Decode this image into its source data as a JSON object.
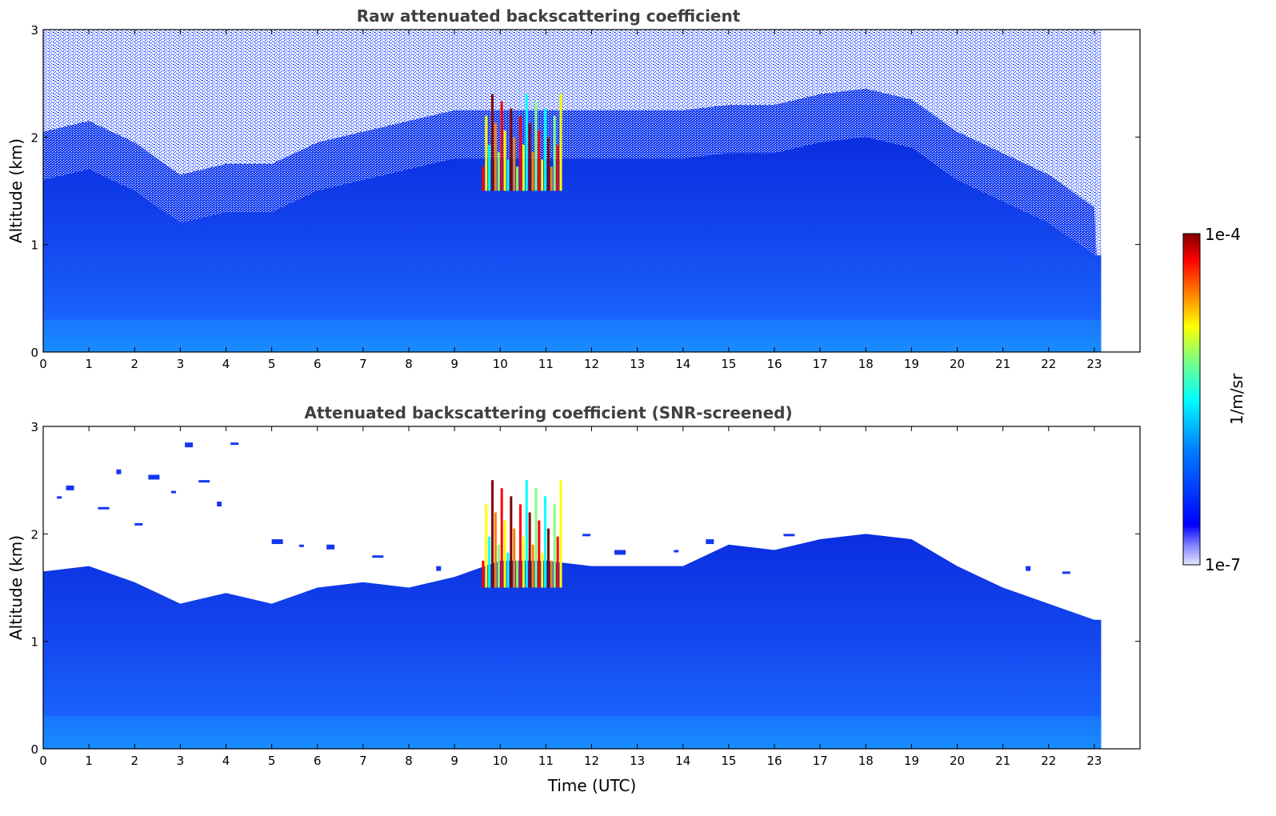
{
  "chart_data": [
    {
      "type": "heatmap",
      "title": "Raw attenuated backscattering coefficient",
      "xlabel": "",
      "ylabel": "Altitude (km)",
      "xlim": [
        0,
        24
      ],
      "ylim": [
        0,
        3
      ],
      "xticks": [
        "0",
        "1",
        "2",
        "3",
        "4",
        "5",
        "6",
        "7",
        "8",
        "9",
        "10",
        "11",
        "12",
        "13",
        "14",
        "15",
        "16",
        "17",
        "18",
        "19",
        "20",
        "21",
        "22",
        "23"
      ],
      "yticks": [
        "0",
        "1",
        "2",
        "3"
      ],
      "data_end_time": 23.15,
      "grid": false,
      "features": {
        "boundary_layer_top_km": [
          [
            0,
            1.6
          ],
          [
            1,
            1.7
          ],
          [
            2,
            1.5
          ],
          [
            3,
            1.2
          ],
          [
            4,
            1.3
          ],
          [
            5,
            1.3
          ],
          [
            6,
            1.5
          ],
          [
            7,
            1.6
          ],
          [
            8,
            1.7
          ],
          [
            9,
            1.8
          ],
          [
            10,
            1.8
          ],
          [
            11,
            1.8
          ],
          [
            12,
            1.8
          ],
          [
            13,
            1.8
          ],
          [
            14,
            1.8
          ],
          [
            15,
            1.85
          ],
          [
            16,
            1.85
          ],
          [
            17,
            1.95
          ],
          [
            18,
            2.0
          ],
          [
            19,
            1.9
          ],
          [
            20,
            1.6
          ],
          [
            21,
            1.4
          ],
          [
            22,
            1.2
          ],
          [
            23,
            0.9
          ]
        ],
        "noise_top": "full range to 3 km",
        "strong_cloud_signal": {
          "time_range": [
            9.6,
            11.3
          ],
          "altitude_range_km": [
            1.5,
            2.4
          ]
        }
      }
    },
    {
      "type": "heatmap",
      "title": "Attenuated backscattering coefficient (SNR-screened)",
      "xlabel": "Time (UTC)",
      "ylabel": "Altitude (km)",
      "xlim": [
        0,
        24
      ],
      "ylim": [
        0,
        3
      ],
      "xticks": [
        "0",
        "1",
        "2",
        "3",
        "4",
        "5",
        "6",
        "7",
        "8",
        "9",
        "10",
        "11",
        "12",
        "13",
        "14",
        "15",
        "16",
        "17",
        "18",
        "19",
        "20",
        "21",
        "22",
        "23"
      ],
      "yticks": [
        "0",
        "1",
        "2",
        "3"
      ],
      "data_end_time": 23.15,
      "grid": false,
      "features": {
        "boundary_layer_top_km": [
          [
            0,
            1.65
          ],
          [
            1,
            1.7
          ],
          [
            2,
            1.55
          ],
          [
            3,
            1.35
          ],
          [
            4,
            1.45
          ],
          [
            5,
            1.35
          ],
          [
            6,
            1.5
          ],
          [
            7,
            1.55
          ],
          [
            8,
            1.5
          ],
          [
            9,
            1.6
          ],
          [
            10,
            1.75
          ],
          [
            11,
            1.75
          ],
          [
            12,
            1.7
          ],
          [
            13,
            1.7
          ],
          [
            14,
            1.7
          ],
          [
            15,
            1.9
          ],
          [
            16,
            1.85
          ],
          [
            17,
            1.95
          ],
          [
            18,
            2.0
          ],
          [
            19,
            1.95
          ],
          [
            20,
            1.7
          ],
          [
            21,
            1.5
          ],
          [
            22,
            1.35
          ],
          [
            23,
            1.2
          ]
        ],
        "strong_cloud_signal": {
          "time_range": [
            9.6,
            11.3
          ],
          "altitude_range_km": [
            1.5,
            2.5
          ]
        }
      }
    }
  ],
  "colorbar": {
    "label": "1/m/sr",
    "min_label": "1e-7",
    "max_label": "1e-4",
    "colormap": "jet",
    "colors": [
      "#e6e6ff",
      "#0000ff",
      "#0080ff",
      "#00ffff",
      "#80ff80",
      "#ffff00",
      "#ff8000",
      "#ff0000",
      "#800000"
    ]
  }
}
